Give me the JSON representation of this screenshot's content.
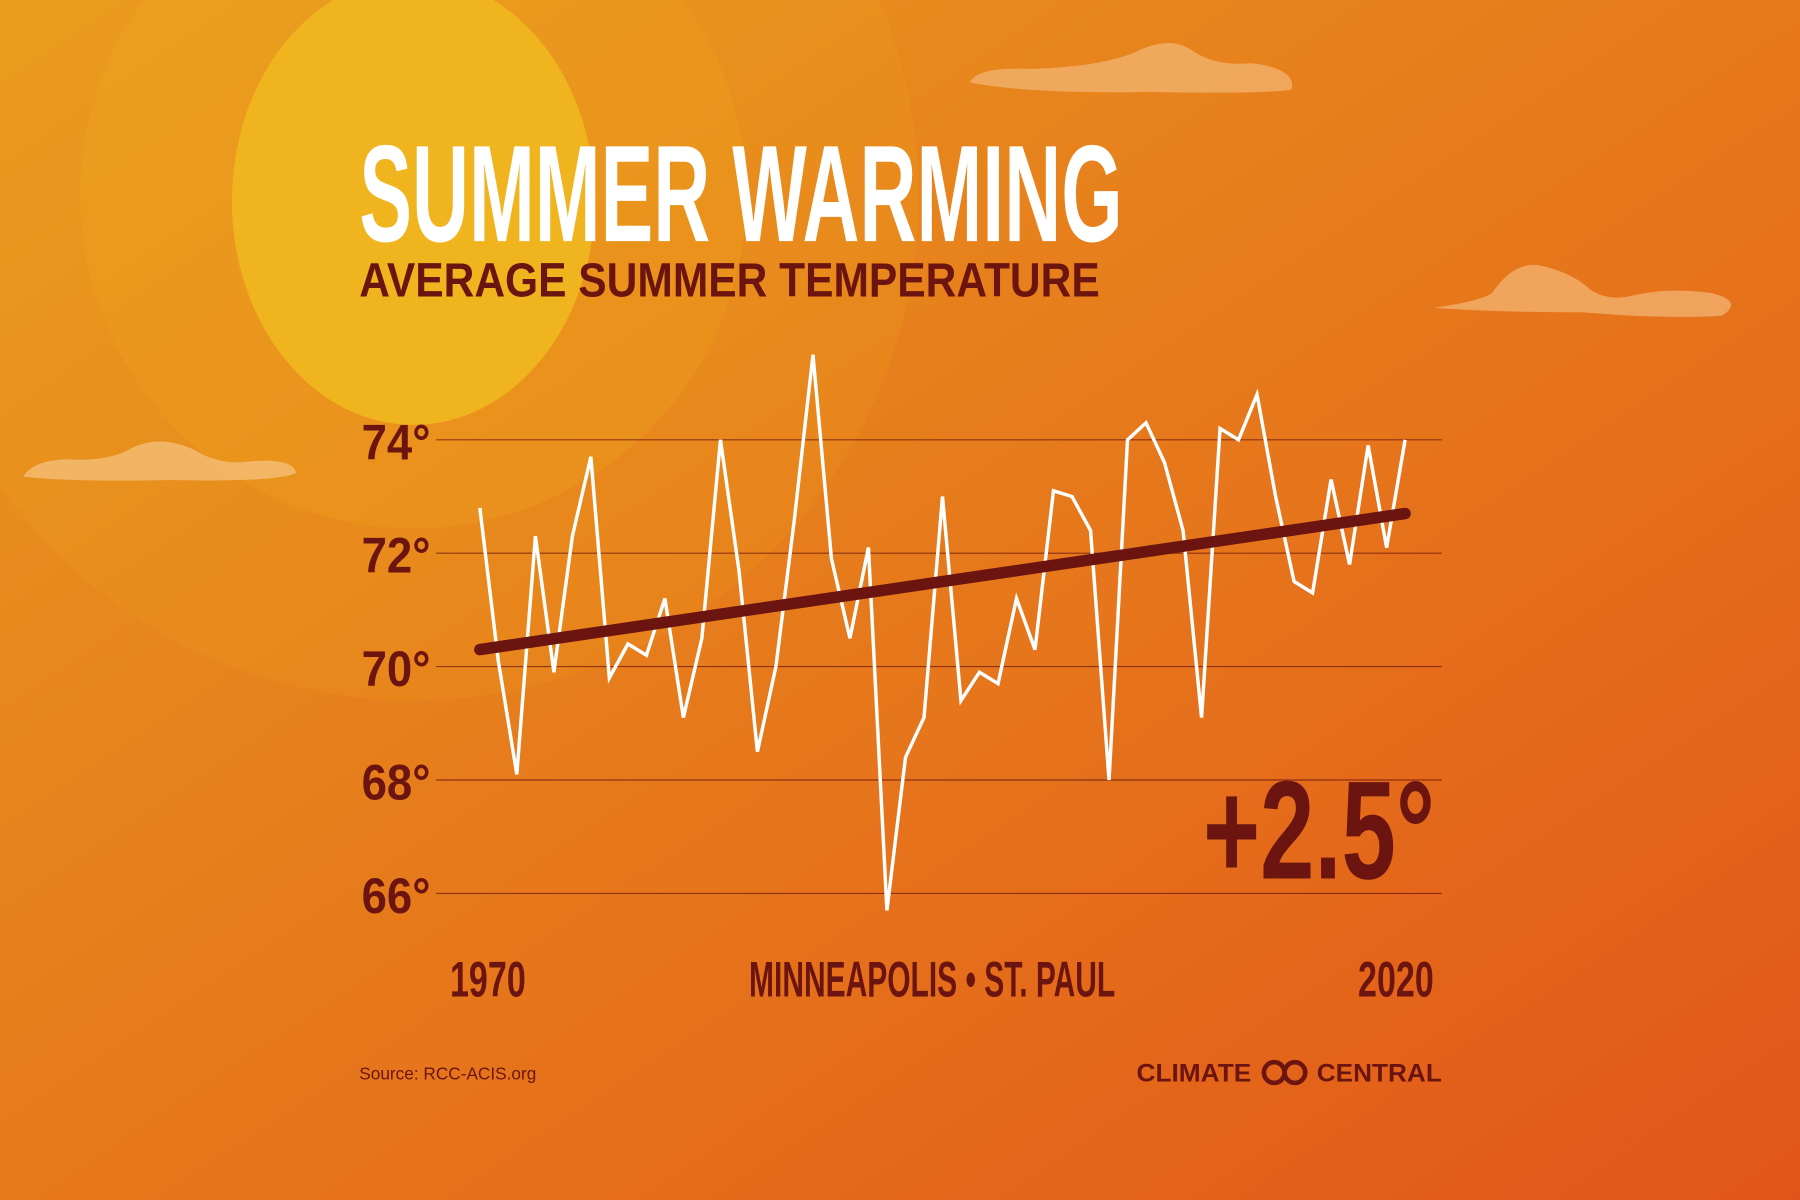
{
  "chart_data": {
    "type": "line",
    "title": "SUMMER WARMING",
    "subtitle": "AVERAGE SUMMER TEMPERATURE",
    "location": "MINNEAPOLIS • ST. PAUL",
    "annotation": "+2.5°",
    "source": "Source: RCC-ACIS.org",
    "logo": [
      "CLIMATE",
      "CENTRAL"
    ],
    "x": [
      1970,
      1971,
      1972,
      1973,
      1974,
      1975,
      1976,
      1977,
      1978,
      1979,
      1980,
      1981,
      1982,
      1983,
      1984,
      1985,
      1986,
      1987,
      1988,
      1989,
      1990,
      1991,
      1992,
      1993,
      1994,
      1995,
      1996,
      1997,
      1998,
      1999,
      2000,
      2001,
      2002,
      2003,
      2004,
      2005,
      2006,
      2007,
      2008,
      2009,
      2010,
      2011,
      2012,
      2013,
      2014,
      2015,
      2016,
      2017,
      2018,
      2019,
      2020
    ],
    "series": [
      {
        "color": "#ffffff",
        "values": [
          72.8,
          70.1,
          68.1,
          72.3,
          69.9,
          72.3,
          73.7,
          69.8,
          70.4,
          70.2,
          71.2,
          69.1,
          70.5,
          74.0,
          71.7,
          68.5,
          70.0,
          72.6,
          75.5,
          71.9,
          70.5,
          72.1,
          65.7,
          68.4,
          69.1,
          73.0,
          69.4,
          69.9,
          69.7,
          71.2,
          70.3,
          73.1,
          73.0,
          72.4,
          68.0,
          74.0,
          74.3,
          73.6,
          72.4,
          69.1,
          74.2,
          74.0,
          74.8,
          73.0,
          71.5,
          71.3,
          73.3,
          71.8,
          73.9,
          72.1,
          74.0
        ]
      }
    ],
    "trend": {
      "x": [
        1970,
        2020
      ],
      "values": [
        70.3,
        72.7
      ],
      "color": "#6b1410"
    },
    "xlim": [
      1970,
      2020
    ],
    "xticks": [
      1970,
      2020
    ],
    "ylim": [
      66,
      74
    ],
    "yticks": [
      {
        "value": 66,
        "label": "66°"
      },
      {
        "value": 68,
        "label": "68°"
      },
      {
        "value": 70,
        "label": "70°"
      },
      {
        "value": 72,
        "label": "72°"
      },
      {
        "value": 74,
        "label": "74°"
      }
    ],
    "grid": true
  }
}
